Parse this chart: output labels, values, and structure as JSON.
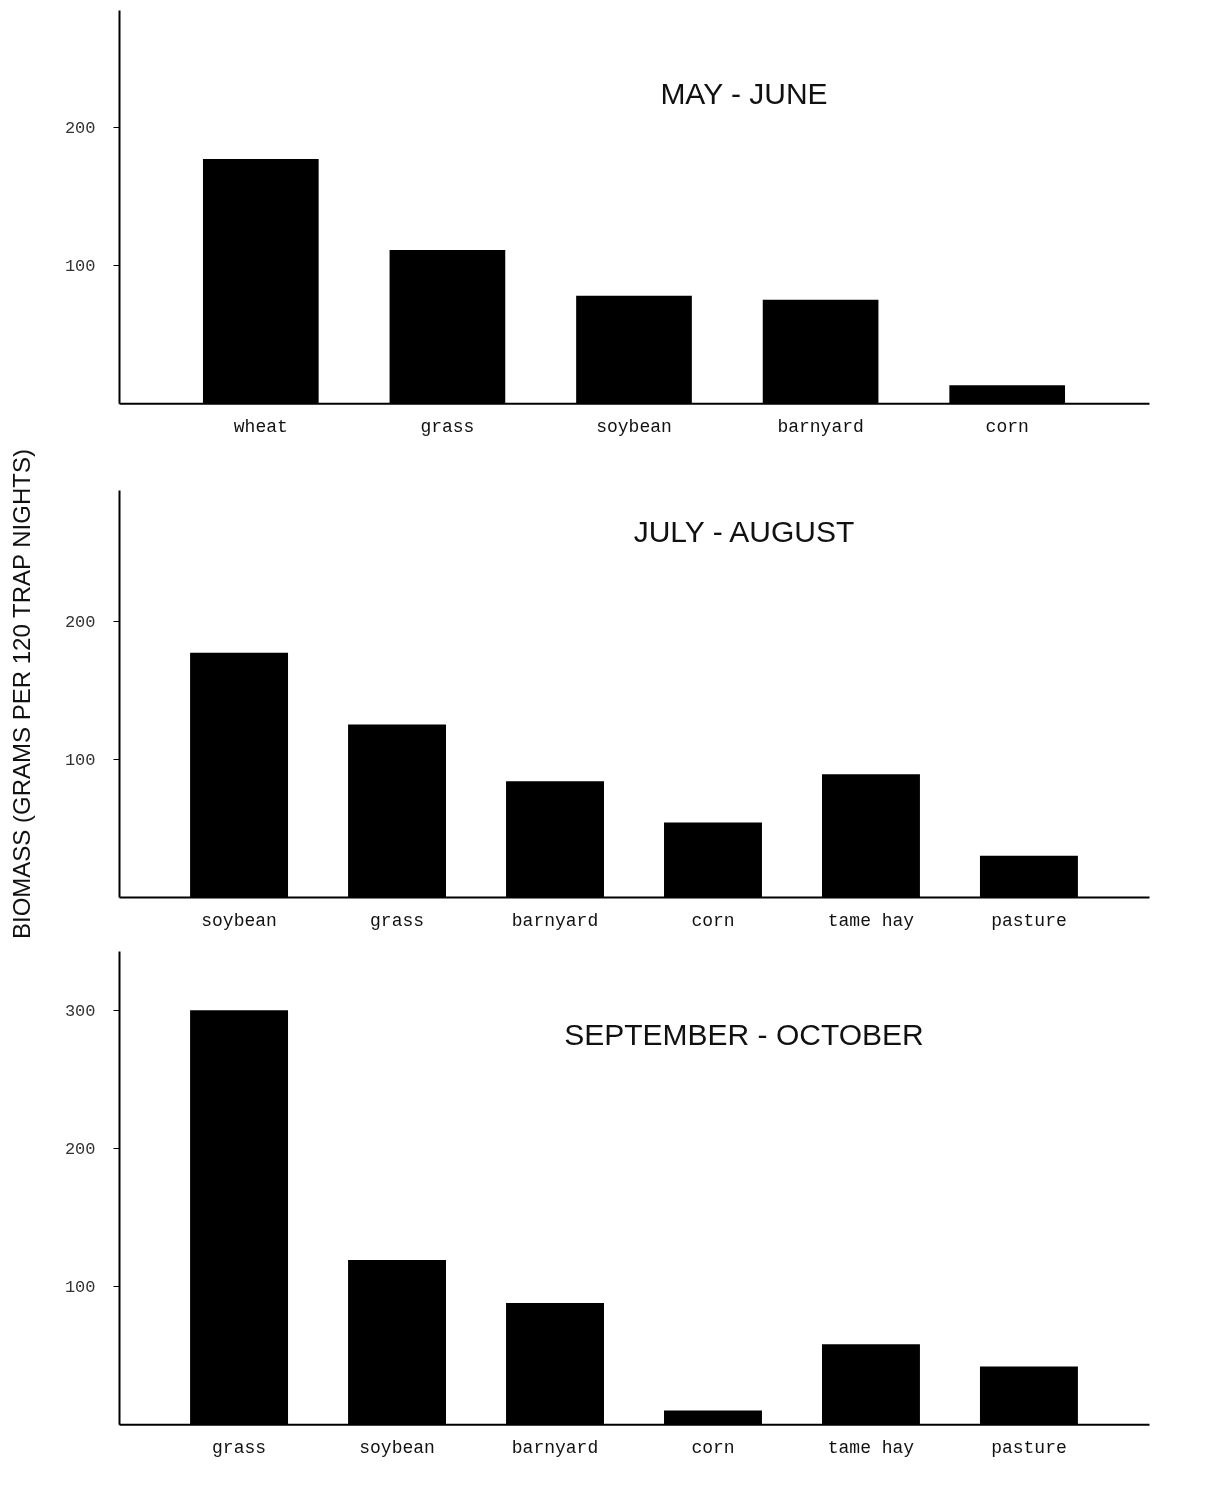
{
  "chart_data": [
    {
      "type": "bar",
      "title": "MAY - JUNE",
      "categories": [
        "wheat",
        "grass",
        "soybean",
        "barnyard",
        "corn"
      ],
      "values": [
        177,
        111,
        78,
        75,
        13
      ],
      "color": "#000000",
      "ylim": [
        0,
        285
      ],
      "yticks": [
        100,
        200
      ],
      "grid": false
    },
    {
      "type": "bar",
      "title": "JULY - AUGUST",
      "ylabel": "BIOMASS (GRAMS PER 120 TRAP NIGHTS)",
      "categories": [
        "soybean",
        "grass",
        "barnyard",
        "corn",
        "tame hay",
        "pasture"
      ],
      "values": [
        177,
        125,
        84,
        54,
        89,
        30
      ],
      "color": "#000000",
      "ylim": [
        0,
        295
      ],
      "yticks": [
        100,
        200
      ],
      "grid": false
    },
    {
      "type": "bar",
      "title": "SEPTEMBER -  OCTOBER",
      "categories": [
        "grass",
        "soybean",
        "barnyard",
        "corn",
        "tame hay",
        "pasture"
      ],
      "values": [
        300,
        119,
        88,
        10,
        58,
        42
      ],
      "color": "#000000",
      "ylim": [
        0,
        343
      ],
      "yticks": [
        100,
        200,
        300
      ],
      "grid": false
    }
  ]
}
